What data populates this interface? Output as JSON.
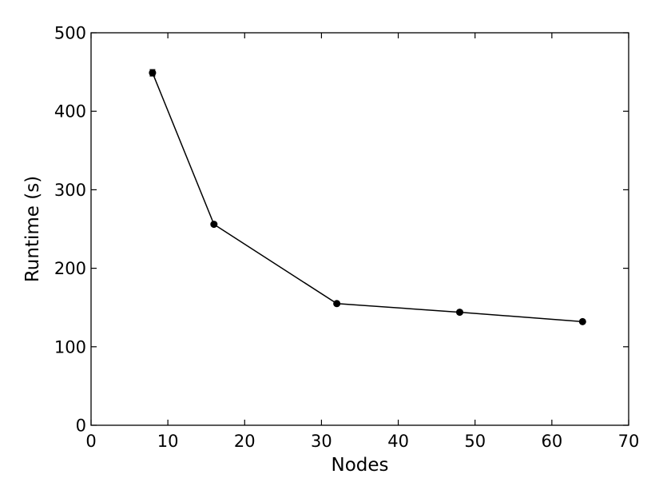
{
  "chart_data": {
    "type": "line",
    "title": "",
    "xlabel": "Nodes",
    "ylabel": "Runtime (s)",
    "xlim": [
      0,
      70
    ],
    "ylim": [
      0,
      500
    ],
    "xticks": [
      0,
      10,
      20,
      30,
      40,
      50,
      60,
      70
    ],
    "yticks": [
      0,
      100,
      200,
      300,
      400,
      500
    ],
    "grid": false,
    "series": [
      {
        "x": [
          8,
          16,
          32,
          48,
          64
        ],
        "y": [
          449,
          256,
          155,
          144,
          132
        ],
        "yerr": [
          4,
          0,
          0,
          0,
          0
        ],
        "color": "#000000",
        "marker": "circle"
      }
    ]
  }
}
